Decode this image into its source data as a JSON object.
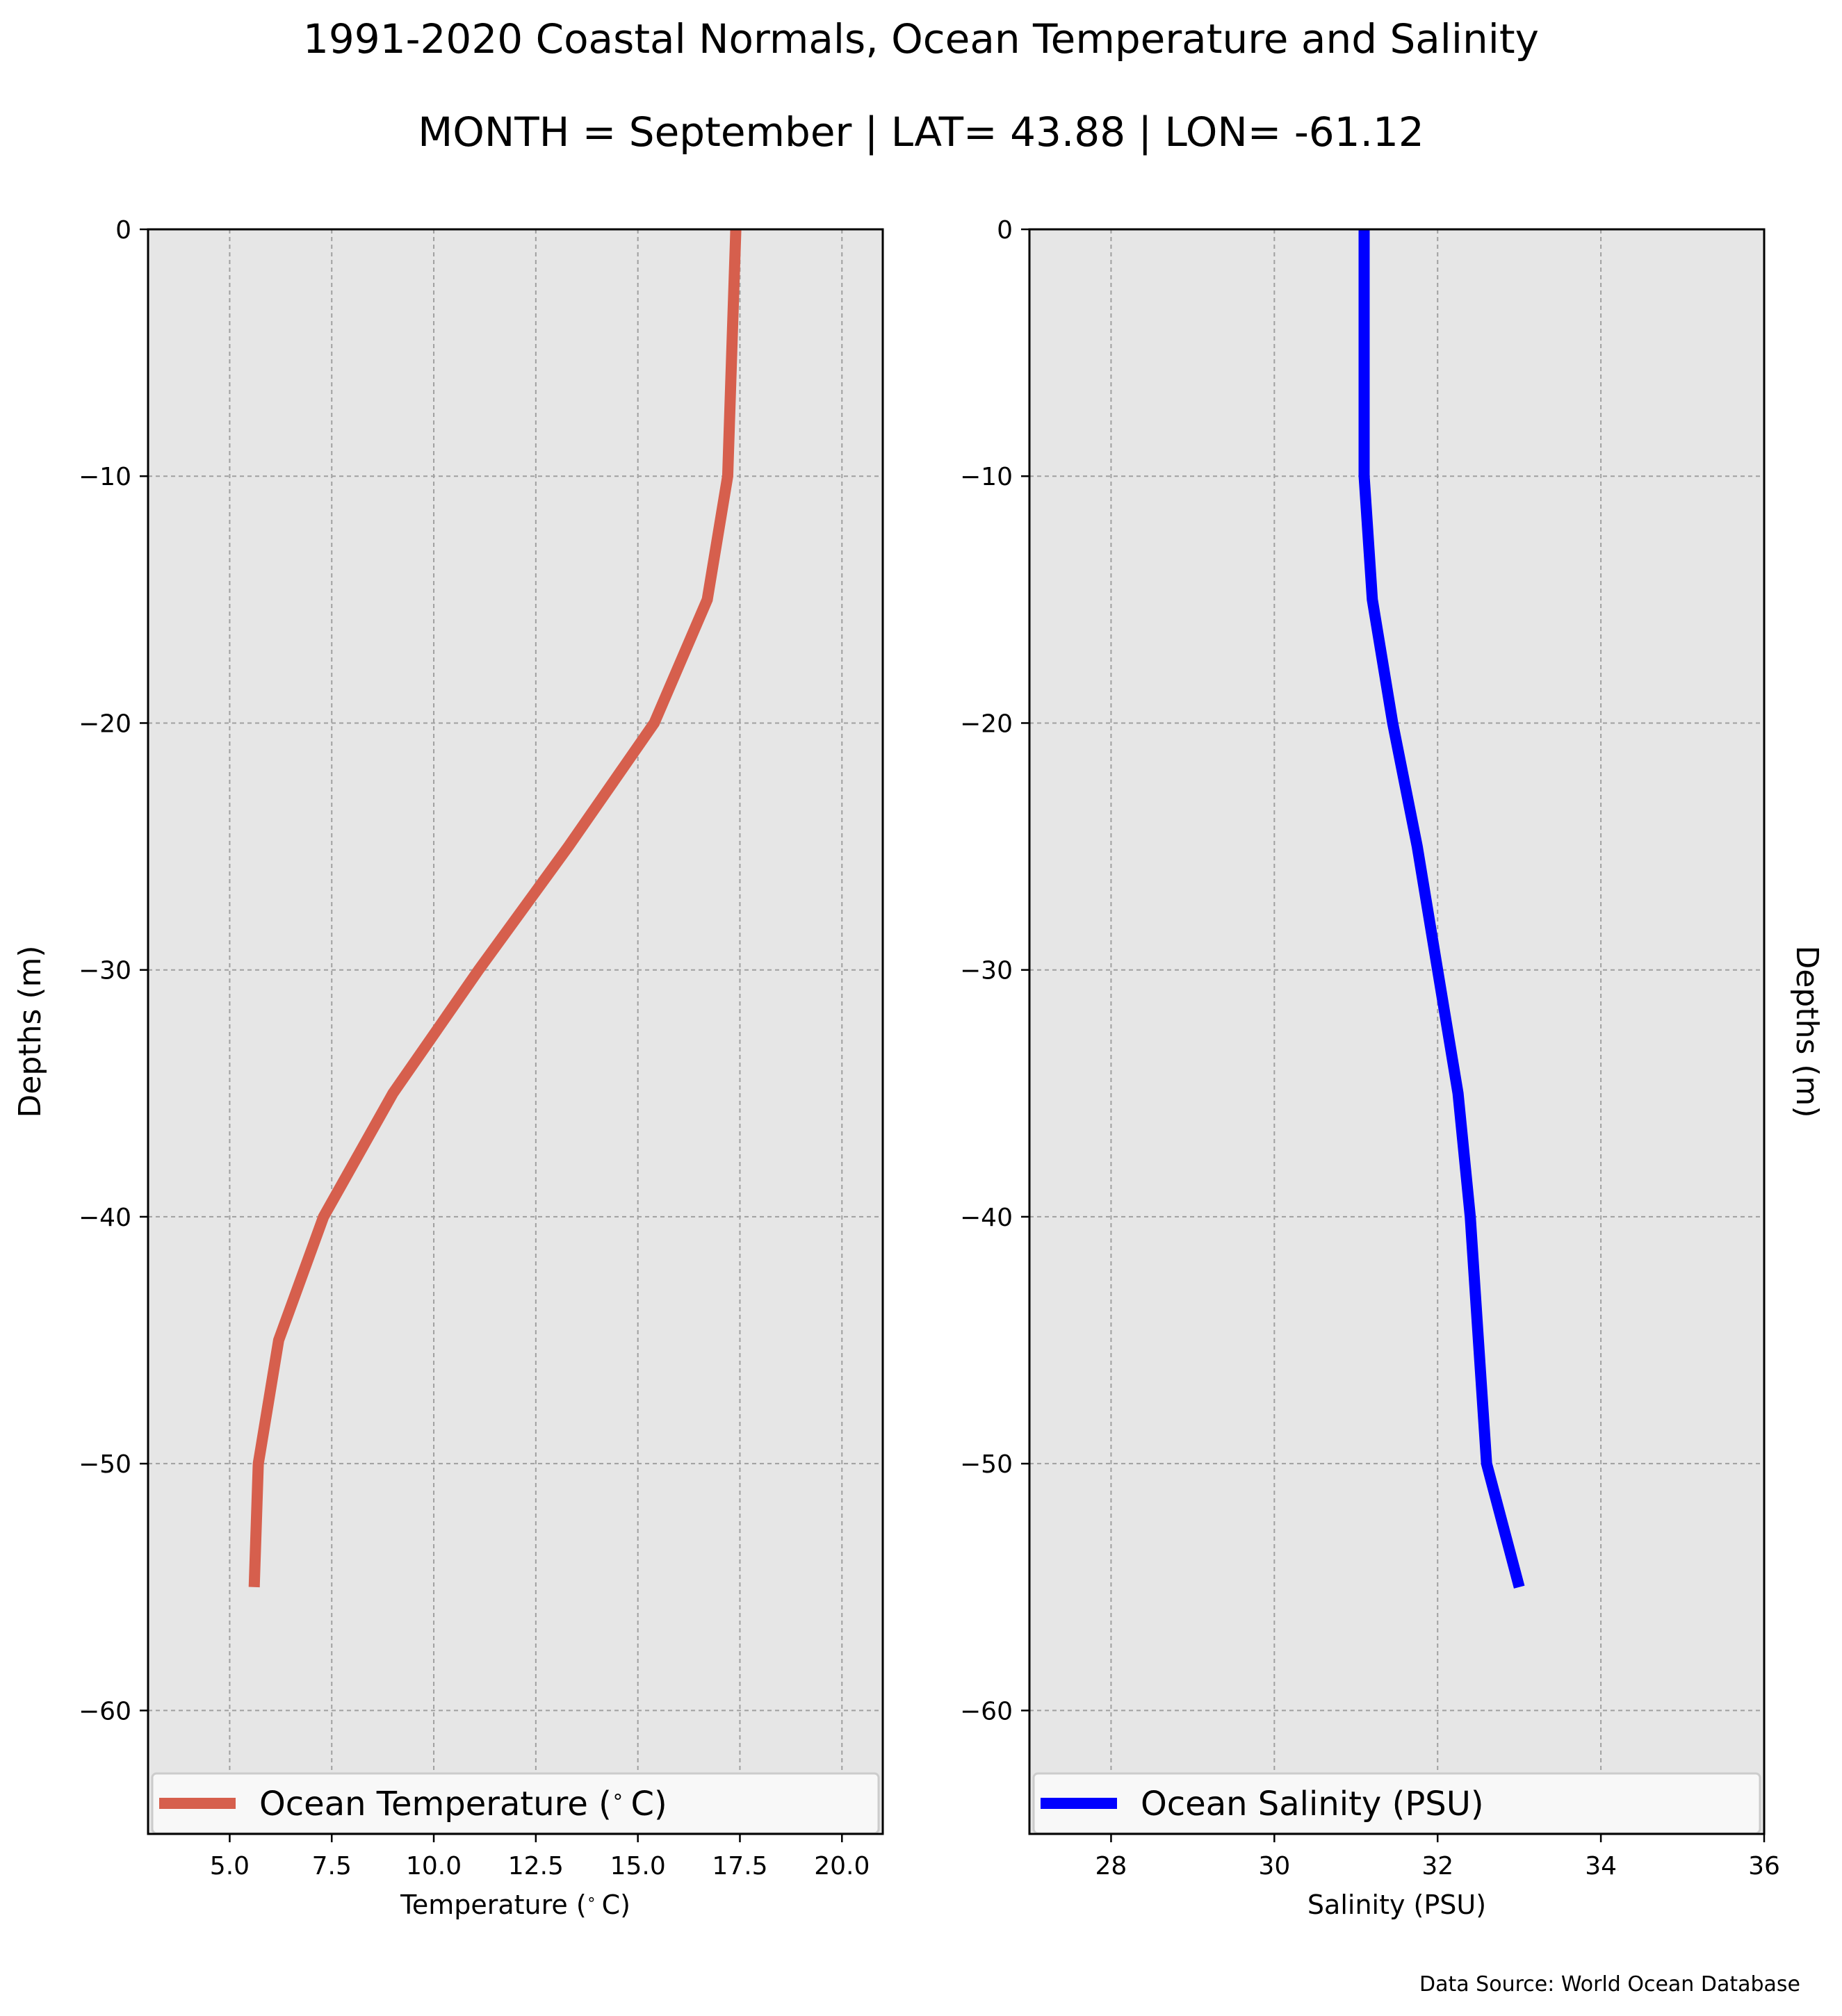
{
  "title": "1991-2020 Coastal Normals, Ocean Temperature and Salinity",
  "subtitle": "MONTH = September | LAT= 43.88 | LON= -61.12",
  "source": "Data Source: World Ocean Database",
  "colors": {
    "temperature": "#d65f4d",
    "salinity": "#0000ff",
    "panel_bg": "#e6e6e6",
    "grid": "#a0a0a0"
  },
  "chart_data": [
    {
      "type": "line",
      "xlabel": "Temperature ($^\\circ$C)",
      "ylabel": "Depths (m)",
      "xlim": [
        3.0,
        21.0
      ],
      "ylim": [
        -65,
        0
      ],
      "xticks": [
        5.0,
        7.5,
        10.0,
        12.5,
        15.0,
        17.5,
        20.0
      ],
      "xtick_labels": [
        "5.0",
        "7.5",
        "10.0",
        "12.5",
        "15.0",
        "17.5",
        "20.0"
      ],
      "yticks": [
        0,
        -10,
        -20,
        -30,
        -40,
        -50,
        -60
      ],
      "ytick_labels": [
        "0",
        "−10",
        "−20",
        "−30",
        "−40",
        "−50",
        "−60"
      ],
      "grid": true,
      "ylabel_side": "left",
      "legend": "bottom",
      "series": [
        {
          "name": "Ocean Temperature ($^\\circ$C)",
          "x": [
            17.4,
            17.3,
            17.2,
            16.7,
            15.4,
            13.3,
            11.1,
            9.0,
            7.3,
            6.2,
            5.7,
            5.6
          ],
          "y": [
            0,
            -5,
            -10,
            -15,
            -20,
            -25,
            -30,
            -35,
            -40,
            -45,
            -50,
            -55
          ]
        }
      ]
    },
    {
      "type": "line",
      "xlabel": "Salinity (PSU)",
      "ylabel": "Depths (m)",
      "xlim": [
        27,
        36
      ],
      "ylim": [
        -65,
        0
      ],
      "xticks": [
        28,
        30,
        32,
        34,
        36
      ],
      "xtick_labels": [
        "28",
        "30",
        "32",
        "34",
        "36"
      ],
      "yticks": [
        0,
        -10,
        -20,
        -30,
        -40,
        -50,
        -60
      ],
      "ytick_labels": [
        "0",
        "−10",
        "−20",
        "−30",
        "−40",
        "−50",
        "−60"
      ],
      "grid": true,
      "ylabel_side": "right",
      "legend": "bottom",
      "series": [
        {
          "name": "Ocean Salinity (PSU)",
          "x": [
            31.1,
            31.1,
            31.1,
            31.2,
            31.45,
            31.75,
            32.0,
            32.25,
            32.4,
            32.5,
            32.6,
            33.0
          ],
          "y": [
            0,
            -5,
            -10,
            -15,
            -20,
            -25,
            -30,
            -35,
            -40,
            -45,
            -50,
            -55
          ]
        }
      ]
    }
  ]
}
